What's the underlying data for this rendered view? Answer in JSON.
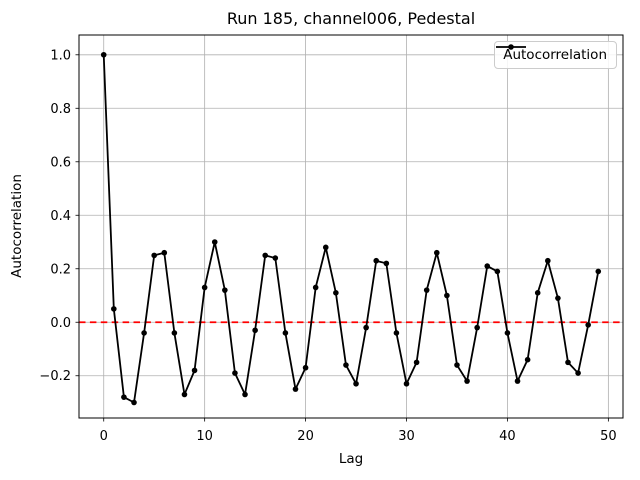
{
  "chart_data": {
    "type": "line",
    "title": "Run 185, channel006, Pedestal",
    "xlabel": "Lag",
    "ylabel": "Autocorrelation",
    "grid": true,
    "legend_position": "upper right",
    "xlim": [
      -2.45,
      51.45
    ],
    "ylim": [
      -0.358,
      1.074
    ],
    "xticks": [
      0,
      10,
      20,
      30,
      40,
      50
    ],
    "yticks": [
      -0.2,
      0.0,
      0.2,
      0.4,
      0.6,
      0.8,
      1.0
    ],
    "x": [
      0,
      1,
      2,
      3,
      4,
      5,
      6,
      7,
      8,
      9,
      10,
      11,
      12,
      13,
      14,
      15,
      16,
      17,
      18,
      19,
      20,
      21,
      22,
      23,
      24,
      25,
      26,
      27,
      28,
      29,
      30,
      31,
      32,
      33,
      34,
      35,
      36,
      37,
      38,
      39,
      40,
      41,
      42,
      43,
      44,
      45,
      46,
      47,
      48,
      49
    ],
    "series": [
      {
        "name": "Autocorrelation",
        "color": "#000000",
        "marker": "circle",
        "values": [
          1.0,
          0.05,
          -0.28,
          -0.3,
          -0.04,
          0.25,
          0.26,
          -0.04,
          -0.27,
          -0.18,
          0.13,
          0.3,
          0.12,
          -0.19,
          -0.27,
          -0.03,
          0.25,
          0.24,
          -0.04,
          -0.25,
          -0.17,
          0.13,
          0.28,
          0.11,
          -0.16,
          -0.23,
          -0.02,
          0.23,
          0.22,
          -0.04,
          -0.23,
          -0.15,
          0.12,
          0.26,
          0.1,
          -0.16,
          -0.22,
          -0.02,
          0.21,
          0.19,
          -0.04,
          -0.22,
          -0.14,
          0.11,
          0.23,
          0.09,
          -0.15,
          -0.19,
          -0.01,
          0.19
        ]
      }
    ],
    "reference_line": {
      "y": 0.0,
      "color": "#ff0000",
      "style": "dashed"
    },
    "colors": {
      "grid": "#b0b0b0",
      "spine": "#000000",
      "background": "#ffffff"
    }
  }
}
